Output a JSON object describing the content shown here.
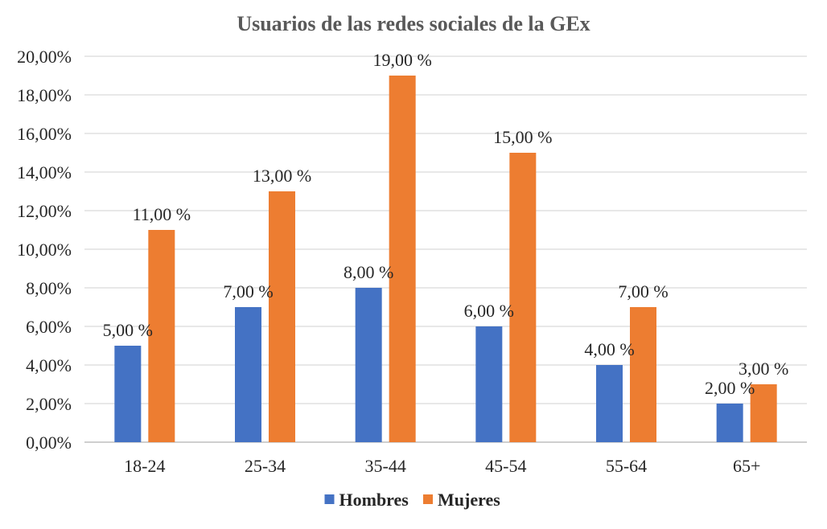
{
  "chart_data": {
    "type": "bar",
    "title": "Usuarios de las redes sociales de la GEx",
    "categories": [
      "18-24",
      "25-34",
      "35-44",
      "45-54",
      "55-64",
      "65+"
    ],
    "series": [
      {
        "name": "Hombres",
        "color": "#4472C4",
        "values": [
          5,
          7,
          8,
          6,
          4,
          2
        ],
        "labels": [
          "5,00 %",
          "7,00 %",
          "8,00 %",
          "6,00 %",
          "4,00 %",
          "2,00 %"
        ]
      },
      {
        "name": "Mujeres",
        "color": "#ED7D31",
        "values": [
          11,
          13,
          19,
          15,
          7,
          3
        ],
        "labels": [
          "11,00 %",
          "13,00 %",
          "19,00 %",
          "15,00 %",
          "7,00 %",
          "3,00 %"
        ]
      }
    ],
    "yticks": [
      "0,00%",
      "2,00%",
      "4,00%",
      "6,00%",
      "8,00%",
      "10,00%",
      "12,00%",
      "14,00%",
      "16,00%",
      "18,00%",
      "20,00%"
    ],
    "ylim": [
      0,
      20
    ],
    "grid": true,
    "legend_position": "bottom"
  }
}
